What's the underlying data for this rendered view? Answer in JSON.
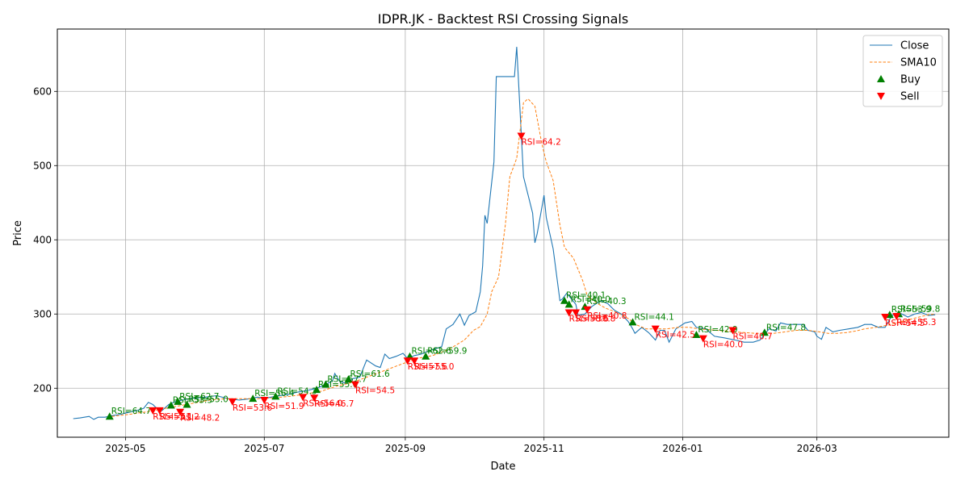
{
  "chart_data": {
    "type": "line",
    "title": "IDPR.JK - Backtest RSI Crossing Signals",
    "xlabel": "Date",
    "ylabel": "Price",
    "xlim": [
      "2025-04-01",
      "2026-04-28"
    ],
    "ylim": [
      134,
      684
    ],
    "grid": true,
    "legend_position": "top-right",
    "x_ticks": [
      {
        "date": "2025-05-01",
        "label": "2025-05"
      },
      {
        "date": "2025-07-01",
        "label": "2025-07"
      },
      {
        "date": "2025-09-01",
        "label": "2025-09"
      },
      {
        "date": "2025-11-01",
        "label": "2025-11"
      },
      {
        "date": "2026-01-01",
        "label": "2026-01"
      },
      {
        "date": "2026-03-01",
        "label": "2026-03"
      }
    ],
    "y_ticks": [
      200,
      300,
      400,
      500,
      600
    ],
    "colors": {
      "close": "#1f77b4",
      "sma": "#ff7f0e",
      "buy": "#008000",
      "sell": "#ff0000",
      "grid": "#b0b0b0"
    },
    "series": [
      {
        "name": "Close",
        "style": "solid",
        "points": [
          [
            "2025-04-08",
            159
          ],
          [
            "2025-04-11",
            160
          ],
          [
            "2025-04-15",
            162
          ],
          [
            "2025-04-17",
            158
          ],
          [
            "2025-04-19",
            161
          ],
          [
            "2025-04-22",
            161
          ],
          [
            "2025-04-25",
            163
          ],
          [
            "2025-04-29",
            165
          ],
          [
            "2025-05-03",
            168
          ],
          [
            "2025-05-06",
            170
          ],
          [
            "2025-05-09",
            173
          ],
          [
            "2025-05-11",
            181
          ],
          [
            "2025-05-13",
            178
          ],
          [
            "2025-05-15",
            172
          ],
          [
            "2025-05-17",
            170
          ],
          [
            "2025-05-20",
            178
          ],
          [
            "2025-05-23",
            182
          ],
          [
            "2025-05-26",
            184
          ],
          [
            "2025-05-29",
            186
          ],
          [
            "2025-06-01",
            187
          ],
          [
            "2025-06-05",
            188
          ],
          [
            "2025-06-10",
            190
          ],
          [
            "2025-06-15",
            186
          ],
          [
            "2025-06-20",
            184
          ],
          [
            "2025-06-25",
            186
          ],
          [
            "2025-06-28",
            188
          ],
          [
            "2025-07-01",
            186
          ],
          [
            "2025-07-04",
            188
          ],
          [
            "2025-07-08",
            190
          ],
          [
            "2025-07-12",
            192
          ],
          [
            "2025-07-16",
            195
          ],
          [
            "2025-07-20",
            197
          ],
          [
            "2025-07-24",
            200
          ],
          [
            "2025-07-28",
            205
          ],
          [
            "2025-07-31",
            210
          ],
          [
            "2025-08-01",
            220
          ],
          [
            "2025-08-03",
            210
          ],
          [
            "2025-08-06",
            206
          ],
          [
            "2025-08-09",
            213
          ],
          [
            "2025-08-12",
            215
          ],
          [
            "2025-08-15",
            238
          ],
          [
            "2025-08-19",
            230
          ],
          [
            "2025-08-21",
            228
          ],
          [
            "2025-08-23",
            246
          ],
          [
            "2025-08-25",
            240
          ],
          [
            "2025-08-28",
            243
          ],
          [
            "2025-08-31",
            247
          ],
          [
            "2025-09-02",
            240
          ],
          [
            "2025-09-05",
            244
          ],
          [
            "2025-09-08",
            246
          ],
          [
            "2025-09-11",
            250
          ],
          [
            "2025-09-14",
            253
          ],
          [
            "2025-09-17",
            256
          ],
          [
            "2025-09-19",
            280
          ],
          [
            "2025-09-22",
            286
          ],
          [
            "2025-09-25",
            300
          ],
          [
            "2025-09-27",
            285
          ],
          [
            "2025-09-29",
            298
          ],
          [
            "2025-10-02",
            303
          ],
          [
            "2025-10-04",
            330
          ],
          [
            "2025-10-05",
            365
          ],
          [
            "2025-10-06",
            433
          ],
          [
            "2025-10-07",
            422
          ],
          [
            "2025-10-10",
            505
          ],
          [
            "2025-10-11",
            620
          ],
          [
            "2025-10-14",
            620
          ],
          [
            "2025-10-17",
            620
          ],
          [
            "2025-10-19",
            620
          ],
          [
            "2025-10-20",
            660
          ],
          [
            "2025-10-23",
            485
          ],
          [
            "2025-10-27",
            436
          ],
          [
            "2025-10-28",
            396
          ],
          [
            "2025-10-29",
            408
          ],
          [
            "2025-11-01",
            460
          ],
          [
            "2025-11-02",
            430
          ],
          [
            "2025-11-05",
            388
          ],
          [
            "2025-11-08",
            318
          ],
          [
            "2025-11-09",
            320
          ],
          [
            "2025-11-11",
            328
          ],
          [
            "2025-11-15",
            313
          ],
          [
            "2025-11-16",
            298
          ],
          [
            "2025-11-19",
            300
          ],
          [
            "2025-11-22",
            310
          ],
          [
            "2025-11-26",
            318
          ],
          [
            "2025-11-29",
            314
          ],
          [
            "2025-12-02",
            305
          ],
          [
            "2025-12-05",
            300
          ],
          [
            "2025-12-08",
            290
          ],
          [
            "2025-12-10",
            280
          ],
          [
            "2025-12-11",
            274
          ],
          [
            "2025-12-14",
            282
          ],
          [
            "2025-12-17",
            275
          ],
          [
            "2025-12-20",
            265
          ],
          [
            "2025-12-22",
            278
          ],
          [
            "2025-12-24",
            278
          ],
          [
            "2025-12-26",
            262
          ],
          [
            "2025-12-29",
            280
          ],
          [
            "2026-01-02",
            288
          ],
          [
            "2026-01-05",
            290
          ],
          [
            "2026-01-07",
            282
          ],
          [
            "2026-01-11",
            280
          ],
          [
            "2026-01-15",
            270
          ],
          [
            "2026-01-19",
            268
          ],
          [
            "2026-01-24",
            265
          ],
          [
            "2026-01-28",
            262
          ],
          [
            "2026-02-01",
            262
          ],
          [
            "2026-02-04",
            265
          ],
          [
            "2026-02-08",
            280
          ],
          [
            "2026-02-11",
            277
          ],
          [
            "2026-02-13",
            288
          ],
          [
            "2026-02-16",
            286
          ],
          [
            "2026-02-20",
            286
          ],
          [
            "2026-02-23",
            286
          ],
          [
            "2026-02-25",
            278
          ],
          [
            "2026-02-28",
            276
          ],
          [
            "2026-03-01",
            270
          ],
          [
            "2026-03-03",
            266
          ],
          [
            "2026-03-05",
            282
          ],
          [
            "2026-03-08",
            276
          ],
          [
            "2026-03-11",
            278
          ],
          [
            "2026-03-15",
            280
          ],
          [
            "2026-03-19",
            282
          ],
          [
            "2026-03-22",
            286
          ],
          [
            "2026-03-25",
            286
          ],
          [
            "2026-03-28",
            282
          ],
          [
            "2026-03-31",
            282
          ],
          [
            "2026-04-03",
            298
          ],
          [
            "2026-04-06",
            302
          ],
          [
            "2026-04-10",
            296
          ],
          [
            "2026-04-13",
            300
          ],
          [
            "2026-04-16",
            302
          ],
          [
            "2026-04-19",
            298
          ],
          [
            "2026-04-22",
            299
          ]
        ]
      },
      {
        "name": "SMA10",
        "style": "dashed",
        "points": [
          [
            "2025-04-25",
            162
          ],
          [
            "2025-05-03",
            165
          ],
          [
            "2025-05-10",
            168
          ],
          [
            "2025-05-17",
            172
          ],
          [
            "2025-05-24",
            176
          ],
          [
            "2025-05-31",
            180
          ],
          [
            "2025-06-07",
            184
          ],
          [
            "2025-06-14",
            186
          ],
          [
            "2025-06-21",
            186
          ],
          [
            "2025-06-28",
            186
          ],
          [
            "2025-07-05",
            187
          ],
          [
            "2025-07-12",
            189
          ],
          [
            "2025-07-19",
            192
          ],
          [
            "2025-07-26",
            196
          ],
          [
            "2025-08-02",
            203
          ],
          [
            "2025-08-09",
            208
          ],
          [
            "2025-08-16",
            216
          ],
          [
            "2025-08-23",
            224
          ],
          [
            "2025-08-30",
            232
          ],
          [
            "2025-09-06",
            240
          ],
          [
            "2025-09-13",
            244
          ],
          [
            "2025-09-20",
            252
          ],
          [
            "2025-09-27",
            265
          ],
          [
            "2025-10-01",
            278
          ],
          [
            "2025-10-04",
            283
          ],
          [
            "2025-10-07",
            300
          ],
          [
            "2025-10-09",
            330
          ],
          [
            "2025-10-12",
            350
          ],
          [
            "2025-10-15",
            420
          ],
          [
            "2025-10-17",
            485
          ],
          [
            "2025-10-20",
            510
          ],
          [
            "2025-10-23",
            585
          ],
          [
            "2025-10-25",
            590
          ],
          [
            "2025-10-28",
            580
          ],
          [
            "2025-10-31",
            530
          ],
          [
            "2025-11-02",
            505
          ],
          [
            "2025-11-05",
            480
          ],
          [
            "2025-11-08",
            420
          ],
          [
            "2025-11-10",
            390
          ],
          [
            "2025-11-14",
            375
          ],
          [
            "2025-11-18",
            345
          ],
          [
            "2025-11-20",
            325
          ],
          [
            "2025-11-24",
            315
          ],
          [
            "2025-11-28",
            308
          ],
          [
            "2025-12-03",
            302
          ],
          [
            "2025-12-08",
            294
          ],
          [
            "2025-12-12",
            285
          ],
          [
            "2025-12-16",
            280
          ],
          [
            "2025-12-20",
            280
          ],
          [
            "2025-12-25",
            280
          ],
          [
            "2025-12-30",
            282
          ],
          [
            "2026-01-04",
            282
          ],
          [
            "2026-01-08",
            280
          ],
          [
            "2026-01-12",
            279
          ],
          [
            "2026-01-16",
            278
          ],
          [
            "2026-01-20",
            277
          ],
          [
            "2026-01-24",
            276
          ],
          [
            "2026-01-28",
            275
          ],
          [
            "2026-02-02",
            274
          ],
          [
            "2026-02-06",
            274
          ],
          [
            "2026-02-10",
            274
          ],
          [
            "2026-02-15",
            276
          ],
          [
            "2026-02-20",
            278
          ],
          [
            "2026-02-25",
            278
          ],
          [
            "2026-03-02",
            276
          ],
          [
            "2026-03-06",
            274
          ],
          [
            "2026-03-10",
            274
          ],
          [
            "2026-03-14",
            275
          ],
          [
            "2026-03-18",
            277
          ],
          [
            "2026-03-22",
            280
          ],
          [
            "2026-03-27",
            282
          ],
          [
            "2026-04-01",
            285
          ],
          [
            "2026-04-05",
            288
          ],
          [
            "2026-04-10",
            292
          ],
          [
            "2026-04-15",
            296
          ],
          [
            "2026-04-19",
            299
          ],
          [
            "2026-04-22",
            300
          ]
        ]
      }
    ],
    "buy_signals": [
      {
        "date": "2025-04-24",
        "price": 162,
        "label": "RSI=64.7"
      },
      {
        "date": "2025-05-21",
        "price": 177,
        "label": "RSI=53.3"
      },
      {
        "date": "2025-05-24",
        "price": 182,
        "label": "RSI=62.7"
      },
      {
        "date": "2025-05-28",
        "price": 178,
        "label": "RSI=55.0"
      },
      {
        "date": "2025-06-26",
        "price": 186,
        "label": "RSI=56.4"
      },
      {
        "date": "2025-07-06",
        "price": 189,
        "label": "RSI=54.3"
      },
      {
        "date": "2025-07-24",
        "price": 198,
        "label": "RSI=55.0"
      },
      {
        "date": "2025-07-28",
        "price": 205,
        "label": "RSI=57.7"
      },
      {
        "date": "2025-08-07",
        "price": 212,
        "label": "RSI=61.6"
      },
      {
        "date": "2025-09-03",
        "price": 243,
        "label": "RSI=62.6"
      },
      {
        "date": "2025-09-10",
        "price": 243,
        "label": "RSI=59.9"
      },
      {
        "date": "2025-11-10",
        "price": 318,
        "label": "RSI=40.1"
      },
      {
        "date": "2025-11-12",
        "price": 313,
        "label": "RSI=40.0"
      },
      {
        "date": "2025-11-19",
        "price": 310,
        "label": "RSI=40.3"
      },
      {
        "date": "2025-12-10",
        "price": 289,
        "label": "RSI=44.1"
      },
      {
        "date": "2026-01-07",
        "price": 272,
        "label": "RSI=42.9"
      },
      {
        "date": "2026-02-06",
        "price": 275,
        "label": "RSI=47.8"
      },
      {
        "date": "2026-04-02",
        "price": 299,
        "label": "RSI=53.9"
      },
      {
        "date": "2026-04-06",
        "price": 300,
        "label": "RSI=59.8"
      }
    ],
    "sell_signals": [
      {
        "date": "2025-05-13",
        "price": 170,
        "label": "RSI=53.1"
      },
      {
        "date": "2025-05-16",
        "price": 170,
        "label": "RSI=51.2"
      },
      {
        "date": "2025-05-25",
        "price": 168,
        "label": "RSI=48.2"
      },
      {
        "date": "2025-06-17",
        "price": 182,
        "label": "RSI=53.6"
      },
      {
        "date": "2025-07-01",
        "price": 184,
        "label": "RSI=51.9"
      },
      {
        "date": "2025-07-18",
        "price": 188,
        "label": "RSI=56.0"
      },
      {
        "date": "2025-07-23",
        "price": 187,
        "label": "RSI=46.7"
      },
      {
        "date": "2025-08-10",
        "price": 205,
        "label": "RSI=54.5"
      },
      {
        "date": "2025-09-02",
        "price": 237,
        "label": "RSI=57.6"
      },
      {
        "date": "2025-09-05",
        "price": 237,
        "label": "RSI=55.0"
      },
      {
        "date": "2025-10-22",
        "price": 540,
        "label": "RSI=64.2"
      },
      {
        "date": "2025-11-12",
        "price": 302,
        "label": "RSI=38.6"
      },
      {
        "date": "2025-11-15",
        "price": 302,
        "label": "RSI=36.8"
      },
      {
        "date": "2025-11-20",
        "price": 306,
        "label": "RSI=40.8"
      },
      {
        "date": "2025-12-20",
        "price": 280,
        "label": "RSI=42.5"
      },
      {
        "date": "2026-01-10",
        "price": 267,
        "label": "RSI=40.0"
      },
      {
        "date": "2026-01-23",
        "price": 278,
        "label": "RSI=40.7"
      },
      {
        "date": "2026-03-31",
        "price": 296,
        "label": "RSI=54.5"
      },
      {
        "date": "2026-04-05",
        "price": 297,
        "label": "RSI=55.3"
      }
    ],
    "legend": [
      {
        "key": "close",
        "label": "Close"
      },
      {
        "key": "sma",
        "label": "SMA10"
      },
      {
        "key": "buy",
        "label": "Buy"
      },
      {
        "key": "sell",
        "label": "Sell"
      }
    ]
  }
}
